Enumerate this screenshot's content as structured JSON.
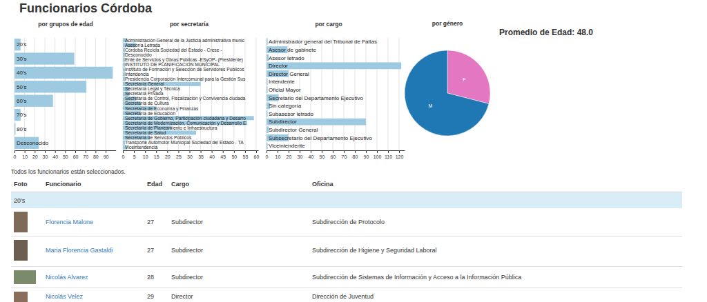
{
  "title": "Funcionarios Córdoba",
  "average_age": "Promedio de Edad: 48.0",
  "chart_data": [
    {
      "type": "bar",
      "orientation": "horizontal",
      "title": "por grupos de edad",
      "categories": [
        "20's",
        "30's",
        "40's",
        "50's",
        "60's",
        "70's",
        "80's",
        "Desconocido"
      ],
      "values": [
        6,
        59,
        97,
        71,
        38,
        6,
        1,
        24
      ],
      "color": "#9ecae1",
      "xlim": [
        0,
        100
      ],
      "xticks": [
        0,
        10,
        20,
        30,
        40,
        50,
        60,
        70,
        80,
        90
      ],
      "grid": true
    },
    {
      "type": "bar",
      "orientation": "horizontal",
      "title": "por secretaría",
      "categories": [
        "Administración General de la Justicia administrativa munic",
        "Asesoría Letrada",
        "Córdoba Recicla Sociedad del Estado - Crese -",
        "Desconocido",
        "Ente de Servicios y Obras Públicas -ESyOP- (Presidente)",
        "INSTITUTO DE PLANIFICACION MUNICIPAL",
        "Instituto de Formación y Selección de Servidores Públicos",
        "Intendencia",
        "Presidencia Corporación Intercomunal para la Gestión Sus",
        "Secretaría General",
        "Secretaría Legal y Técnica",
        "Secretaría Privada",
        "Secretaría de Control, Fiscalización y Convivencia ciudada",
        "Secretaría de Cultura",
        "Secretaría de Economía y Finanzas",
        "Secretaría de Educación",
        "Secretaría de Gobierno, Participación ciudadana y Desarro",
        "Secretaría de Modernización, Comunicación y Desarrollo E",
        "Secretaría de Planeamiento e Infraestructura",
        "Secretaría de Salud",
        "Secretaría de Servicios Públicos",
        "Transporte Automotor Municipal Sociedad del Estado - TA",
        "Viceintendencia"
      ],
      "values": [
        2,
        6,
        1,
        1,
        1,
        1,
        1,
        1,
        1,
        35,
        3,
        3,
        6,
        8,
        15,
        8,
        59,
        56,
        22,
        33,
        12,
        1,
        2
      ],
      "color": "#9ecae1",
      "xlim": [
        0,
        61
      ],
      "xticks": [
        0,
        5,
        10,
        15,
        20,
        25,
        30,
        35,
        40,
        45,
        50,
        55,
        60
      ],
      "grid": true
    },
    {
      "type": "bar",
      "orientation": "horizontal",
      "title": "por cargo",
      "categories": [
        "Administrador general del Tribunal de Faltas",
        "Asesor de gabinete",
        "Asesor letrado",
        "Director",
        "Director General",
        "Intendente",
        "Oficial Mayor",
        "Secretario del Departamento Ejecutivo",
        "Sin categoría",
        "Subasesor letrado",
        "Subdirector",
        "Subdirector General",
        "Subsecretario del Departamento Ejecutivo",
        "Viceintendente"
      ],
      "values": [
        1,
        19,
        2,
        122,
        20,
        1,
        1,
        11,
        3,
        1,
        90,
        2,
        20,
        1
      ],
      "color": "#9ecae1",
      "xlim": [
        0,
        125
      ],
      "xticks": [
        0,
        10,
        20,
        30,
        40,
        50,
        60,
        70,
        80,
        90,
        100,
        110,
        120
      ],
      "grid": true
    },
    {
      "type": "pie",
      "title": "por género",
      "categories": [
        "F",
        "M"
      ],
      "values": [
        29,
        71
      ],
      "colors": [
        "#e377c2",
        "#1f77b4"
      ]
    }
  ],
  "table": {
    "status": "Todos los funcionarios están seleccionados.",
    "columns": [
      "Foto",
      "Funcionario",
      "Edad",
      "Cargo",
      "Oficina"
    ],
    "groups": [
      {
        "label": "20's",
        "rows": [
          [
            "Florencia Malone",
            "27",
            "Subdirector",
            "Subdirección de Protocolo"
          ],
          [
            "Maria Florencia Gastaldi",
            "27",
            "Subdirector",
            "Subdirección de Higiene y Seguridad Laboral"
          ],
          [
            "Nicolás Alvarez",
            "28",
            "Subdirector",
            "Subdirección de Sistemas de Información y Acceso a la Información Pública"
          ],
          [
            "Nicolás Velez",
            "29",
            "Director",
            "Dirección de Juventud"
          ]
        ]
      }
    ]
  }
}
